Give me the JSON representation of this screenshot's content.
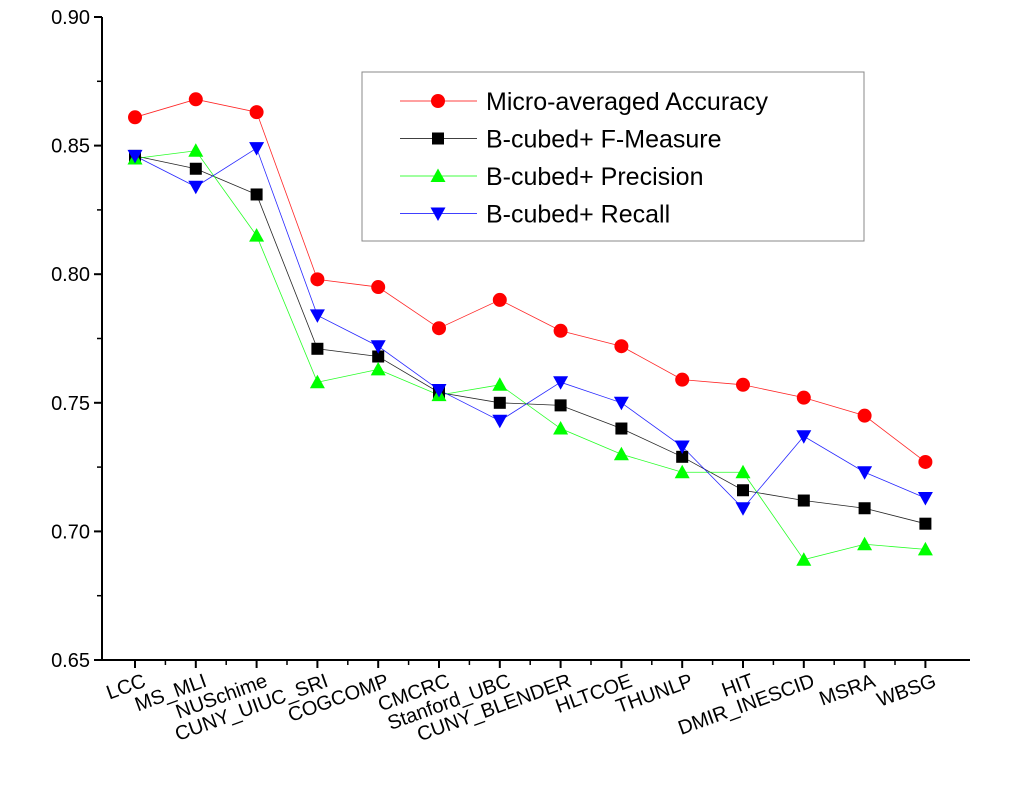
{
  "chart_data": {
    "type": "line",
    "categories": [
      "LCC",
      "MS_MLI",
      "NUSchime",
      "CUNY_UIUC_SRI",
      "COGCOMP",
      "CMCRC",
      "Stanford_UBC",
      "CUNY_BLENDER",
      "HLTCOE",
      "THUNLP",
      "HIT",
      "DMIR_INESCID",
      "MSRA",
      "WBSG"
    ],
    "ylim": [
      0.65,
      0.9
    ],
    "yticks": [
      "0.65",
      "0.70",
      "0.75",
      "0.80",
      "0.85",
      "0.90"
    ],
    "ytick_values": [
      0.65,
      0.7,
      0.75,
      0.8,
      0.85,
      0.9
    ],
    "xlabel": "",
    "ylabel": "",
    "legend_position": "top-right",
    "grid": false,
    "series": [
      {
        "name": "Micro-averaged Accuracy",
        "marker": "circle",
        "color": "#ff0000",
        "values": [
          0.861,
          0.868,
          0.863,
          0.798,
          0.795,
          0.779,
          0.79,
          0.778,
          0.772,
          0.759,
          0.757,
          0.752,
          0.745,
          0.727
        ]
      },
      {
        "name": "B-cubed+ F-Measure",
        "marker": "square",
        "color": "#000000",
        "values": [
          0.846,
          0.841,
          0.831,
          0.771,
          0.768,
          0.754,
          0.75,
          0.749,
          0.74,
          0.729,
          0.716,
          0.712,
          0.709,
          0.703
        ]
      },
      {
        "name": "B-cubed+ Precision",
        "marker": "triangle-up",
        "color": "#00ff00",
        "values": [
          0.845,
          0.848,
          0.815,
          0.758,
          0.763,
          0.753,
          0.757,
          0.74,
          0.73,
          0.723,
          0.723,
          0.689,
          0.695,
          0.693
        ]
      },
      {
        "name": "B-cubed+ Recall",
        "marker": "triangle-down",
        "color": "#0000ff",
        "values": [
          0.846,
          0.834,
          0.849,
          0.784,
          0.772,
          0.755,
          0.743,
          0.758,
          0.75,
          0.733,
          0.709,
          0.737,
          0.723,
          0.713
        ]
      }
    ]
  }
}
